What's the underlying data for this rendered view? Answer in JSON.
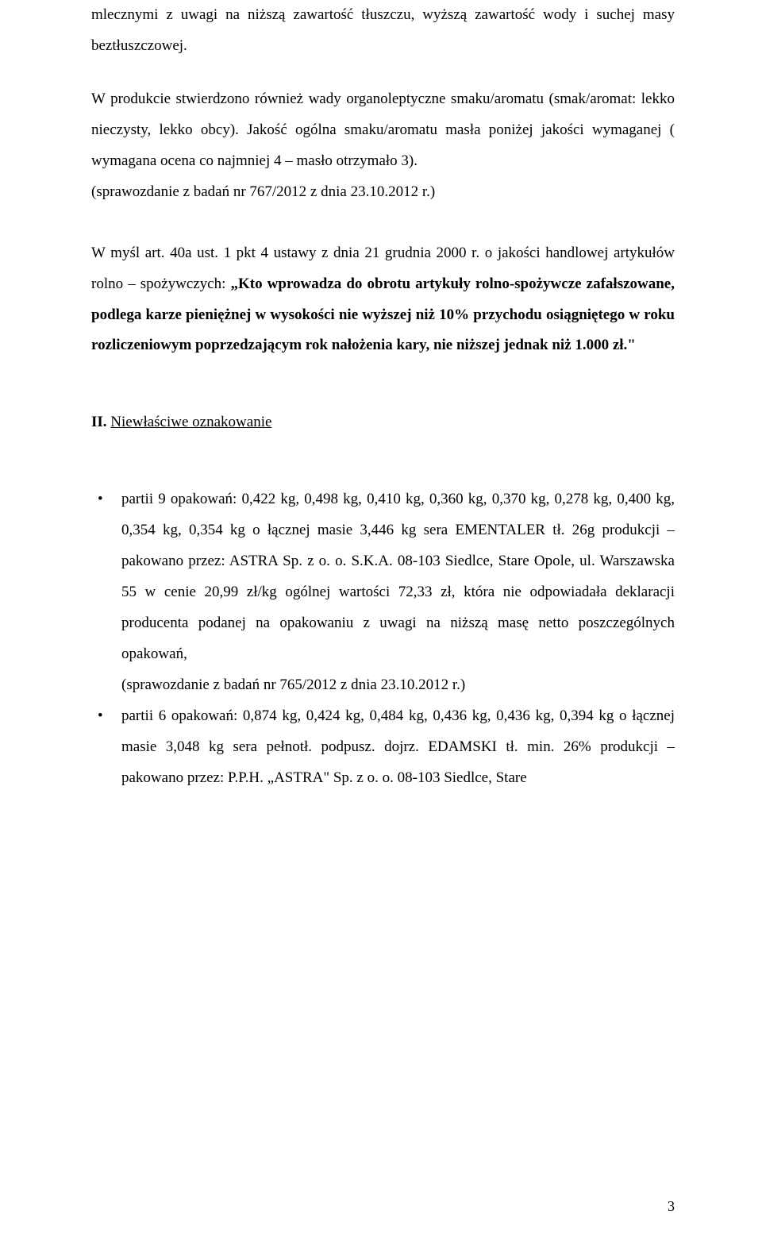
{
  "para1": "mlecznymi z uwagi na niższą zawartość tłuszczu, wyższą zawartość wody i suchej masy beztłuszczowej.",
  "para2": "W produkcie stwierdzono również wady organoleptyczne smaku/aromatu (smak/aromat: lekko nieczysty, lekko obcy). Jakość ogólna smaku/aromatu masła poniżej jakości wymaganej ( wymagana ocena co najmniej 4 – masło otrzymało 3).",
  "para3": "(sprawozdanie z badań nr 767/2012 z dnia 23.10.2012 r.)",
  "para4_prefix": "W myśl art. 40a ust. 1 pkt 4 ustawy z dnia 21 grudnia 2000 r. o jakości handlowej artykułów rolno – spożywczych: ",
  "para4_bold": "„Kto wprowadza do obrotu artykuły rolno-spożywcze zafałszowane, podlega karze pieniężnej w wysokości nie wyższej niż 10% przychodu osiągniętego w roku rozliczeniowym poprzedzającym rok nałożenia kary, nie niższej jednak niż 1.000 zł.\"",
  "section2_num": "II.",
  "section2_label": "Niewłaściwe oznakowanie",
  "bullet1": "partii  9 opakowań: 0,422 kg, 0,498 kg, 0,410 kg,  0,360 kg, 0,370 kg, 0,278 kg, 0,400 kg, 0,354 kg, 0,354 kg  o łącznej masie  3,446 kg sera EMENTALER  tł. 26g produkcji – pakowano przez: ASTRA Sp. z o. o. S.K.A. 08-103 Siedlce, Stare Opole, ul. Warszawska 55 w cenie 20,99 zł/kg ogólnej wartości 72,33 zł, która nie odpowiadała deklaracji producenta podanej na opakowaniu z uwagi na niższą masę netto poszczególnych  opakowań,",
  "bullet1_note": "(sprawozdanie z badań nr 765/2012 z dnia 23.10.2012 r.)",
  "bullet2": "partii 6 opakowań: 0,874 kg,  0,424 kg,  0,484 kg, 0,436 kg, 0,436 kg, 0,394 kg o łącznej  masie 3,048 kg sera pełnotł. podpusz. dojrz. EDAMSKI   tł. min. 26% produkcji – pakowano przez: P.P.H. „ASTRA\"  Sp. z o. o. 08-103 Siedlce, Stare",
  "page_number": "3"
}
